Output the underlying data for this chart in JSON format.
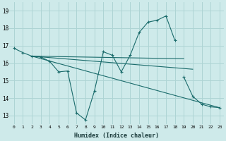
{
  "xlabel": "Humidex (Indice chaleur)",
  "bg_color": "#ceeaea",
  "grid_color": "#aed4d4",
  "line_color": "#1a6b6b",
  "xlim": [
    -0.5,
    23.5
  ],
  "ylim": [
    12.5,
    19.5
  ],
  "yticks": [
    13,
    14,
    15,
    16,
    17,
    18,
    19
  ],
  "xticks": [
    0,
    1,
    2,
    3,
    4,
    5,
    6,
    7,
    8,
    9,
    10,
    11,
    12,
    13,
    14,
    15,
    16,
    17,
    18,
    19,
    20,
    21,
    22,
    23
  ],
  "series1_x": [
    0,
    1,
    2,
    3,
    4,
    5,
    6,
    7,
    8,
    9,
    10,
    11,
    12,
    13,
    14,
    15,
    16,
    17,
    18
  ],
  "series1_y": [
    16.85,
    16.6,
    16.4,
    16.35,
    16.1,
    15.5,
    15.55,
    13.15,
    12.75,
    14.4,
    16.65,
    16.45,
    15.5,
    16.45,
    17.75,
    18.35,
    18.45,
    18.7,
    17.3
  ],
  "series2_x": [
    19,
    20,
    21,
    22,
    23
  ],
  "series2_y": [
    15.2,
    14.1,
    13.65,
    13.5,
    13.45
  ],
  "fan_start_x": 2,
  "fan_start_y": 16.4,
  "fan_lines": [
    {
      "x2": 19,
      "y2": 16.25
    },
    {
      "x2": 20,
      "y2": 15.65
    },
    {
      "x2": 23,
      "y2": 13.45
    }
  ]
}
